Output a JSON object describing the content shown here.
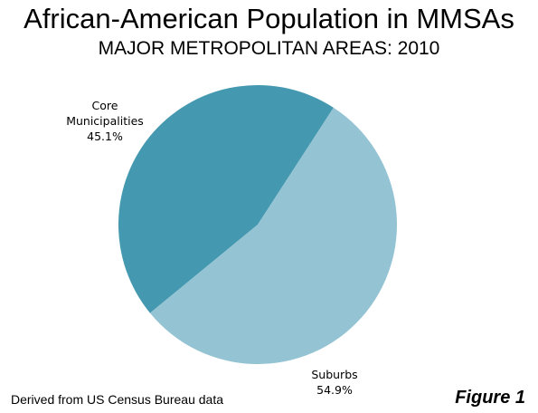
{
  "title": "African-American Population in MMSAs",
  "subtitle": "MAJOR METROPOLITAN AREAS: 2010",
  "source_note": "Derived from US Census Bureau data",
  "figure_label": "Figure 1",
  "chart_data": {
    "type": "pie",
    "title": "African-American Population in MMSAs",
    "subtitle": "MAJOR METROPOLITAN AREAS: 2010",
    "slices": [
      {
        "label_lines": [
          "Core",
          "Municipalities"
        ],
        "value": 45.1,
        "value_label": "45.1%",
        "color": "#4499b0"
      },
      {
        "label_lines": [
          "Suburbs"
        ],
        "value": 54.9,
        "value_label": "54.9%",
        "color": "#94c3d4"
      }
    ],
    "start_angle_deg": 57,
    "direction": "counterclockwise",
    "legend": "none",
    "label_placement": "outside"
  }
}
